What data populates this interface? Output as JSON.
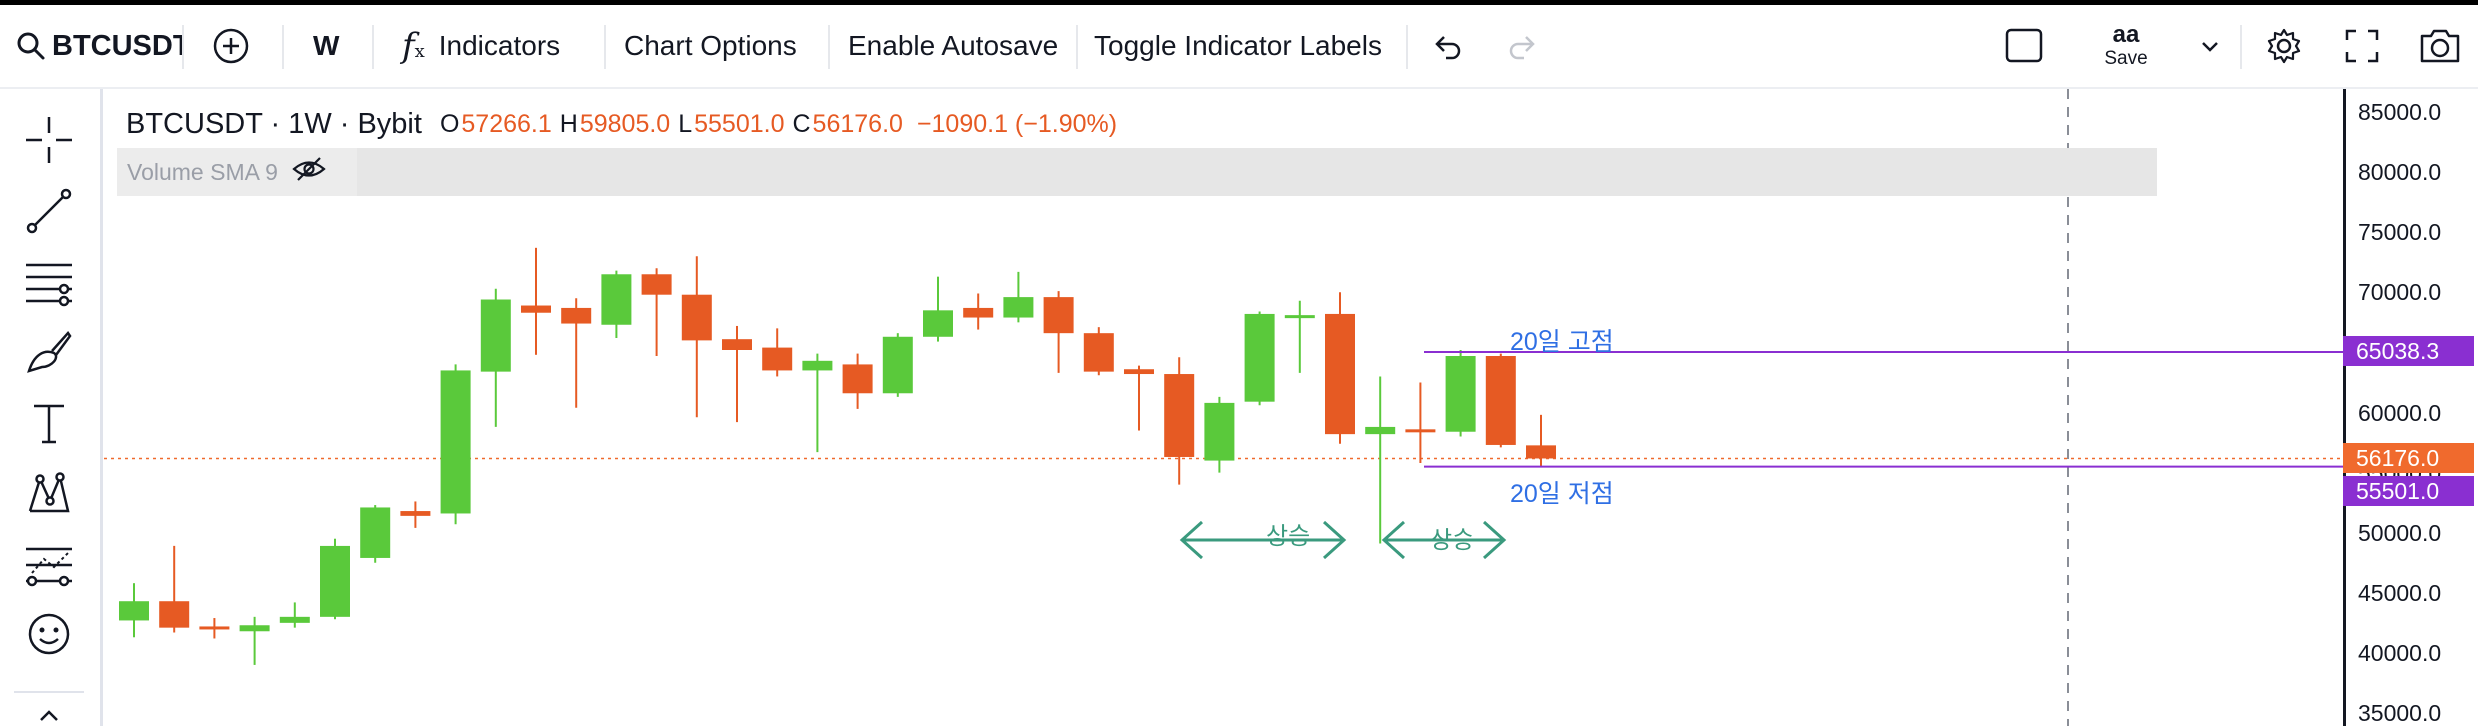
{
  "toolbar": {
    "symbol": "BTCUSDT",
    "interval": "W",
    "indicators_label": "Indicators",
    "chart_options_label": "Chart Options",
    "autosave_label": "Enable Autosave",
    "toggle_labels_label": "Toggle Indicator Labels",
    "layout_aa": "aa",
    "save_label": "Save"
  },
  "legend": {
    "symbol_line": "BTCUSDT · 1W · Bybit",
    "o_key": "O",
    "o_val": "57266.1",
    "h_key": "H",
    "h_val": "59805.0",
    "l_key": "L",
    "l_val": "55501.0",
    "c_key": "C",
    "c_val": "56176.0",
    "change": "−1090.1 (−1.90%)",
    "volume_label": "Volume SMA 9"
  },
  "colors": {
    "up": "#5ac93b",
    "down": "#e65a23",
    "hline": "#8a2fd1",
    "current_price": "#f06a2d",
    "annotation_text": "#2f6fe4",
    "arrow": "#3a9a7e"
  },
  "price_axis": {
    "ticks": [
      "85000.0",
      "80000.0",
      "75000.0",
      "70000.0",
      "65000.0",
      "60000.0",
      "55000.0",
      "50000.0",
      "45000.0",
      "40000.0",
      "35000.0"
    ],
    "high_line_badge": "65038.3",
    "current_badge": "56176.0",
    "low_line_badge": "55501.0"
  },
  "annotations": {
    "high_label": "20일 고점",
    "low_label": "20일 저점",
    "up_label_1": "상승",
    "up_label_2": "상승"
  },
  "chart_data": {
    "type": "candlestick",
    "ylim": [
      35000,
      85000
    ],
    "levels": {
      "high_20": 65038.3,
      "low_20": 55501.0,
      "current": 56176.0
    },
    "candles": [
      {
        "o": 42700,
        "h": 45800,
        "l": 41300,
        "c": 44300
      },
      {
        "o": 44300,
        "h": 48900,
        "l": 41700,
        "c": 42100
      },
      {
        "o": 42200,
        "h": 42900,
        "l": 41200,
        "c": 42000
      },
      {
        "o": 41800,
        "h": 43000,
        "l": 39000,
        "c": 42300
      },
      {
        "o": 42500,
        "h": 44200,
        "l": 42100,
        "c": 43000
      },
      {
        "o": 43000,
        "h": 49500,
        "l": 42800,
        "c": 48900
      },
      {
        "o": 47900,
        "h": 52300,
        "l": 47500,
        "c": 52100
      },
      {
        "o": 51800,
        "h": 52600,
        "l": 50400,
        "c": 51400
      },
      {
        "o": 51600,
        "h": 64000,
        "l": 50700,
        "c": 63500
      },
      {
        "o": 63400,
        "h": 70300,
        "l": 58800,
        "c": 69400
      },
      {
        "o": 68900,
        "h": 73700,
        "l": 64800,
        "c": 68300
      },
      {
        "o": 68700,
        "h": 69500,
        "l": 60400,
        "c": 67400
      },
      {
        "o": 67300,
        "h": 71800,
        "l": 66200,
        "c": 71500
      },
      {
        "o": 71500,
        "h": 72000,
        "l": 64700,
        "c": 69800
      },
      {
        "o": 69800,
        "h": 73000,
        "l": 59600,
        "c": 66000
      },
      {
        "o": 66100,
        "h": 67200,
        "l": 59200,
        "c": 65200
      },
      {
        "o": 65400,
        "h": 67000,
        "l": 63000,
        "c": 63500
      },
      {
        "o": 63500,
        "h": 64900,
        "l": 56700,
        "c": 64300
      },
      {
        "o": 64000,
        "h": 64900,
        "l": 60300,
        "c": 61600
      },
      {
        "o": 61600,
        "h": 66600,
        "l": 61300,
        "c": 66300
      },
      {
        "o": 66300,
        "h": 71300,
        "l": 65900,
        "c": 68500
      },
      {
        "o": 68700,
        "h": 69900,
        "l": 66900,
        "c": 67900
      },
      {
        "o": 67900,
        "h": 71700,
        "l": 67500,
        "c": 69600
      },
      {
        "o": 69600,
        "h": 70100,
        "l": 63300,
        "c": 66600
      },
      {
        "o": 66600,
        "h": 67100,
        "l": 63100,
        "c": 63400
      },
      {
        "o": 63600,
        "h": 63900,
        "l": 58500,
        "c": 63200
      },
      {
        "o": 63200,
        "h": 64600,
        "l": 54000,
        "c": 56300
      },
      {
        "o": 56000,
        "h": 61300,
        "l": 55000,
        "c": 60800
      },
      {
        "o": 60900,
        "h": 68400,
        "l": 60600,
        "c": 68200
      },
      {
        "o": 68000,
        "h": 69300,
        "l": 63300,
        "c": 68100
      },
      {
        "o": 68200,
        "h": 70000,
        "l": 57400,
        "c": 58200
      },
      {
        "o": 58200,
        "h": 63000,
        "l": 49100,
        "c": 58800
      },
      {
        "o": 58600,
        "h": 62500,
        "l": 55800,
        "c": 58500
      },
      {
        "o": 58400,
        "h": 65200,
        "l": 58000,
        "c": 64700
      },
      {
        "o": 64700,
        "h": 64900,
        "l": 57100,
        "c": 57300
      },
      {
        "o": 57266.1,
        "h": 59805.0,
        "l": 55501.0,
        "c": 56176.0
      }
    ]
  }
}
